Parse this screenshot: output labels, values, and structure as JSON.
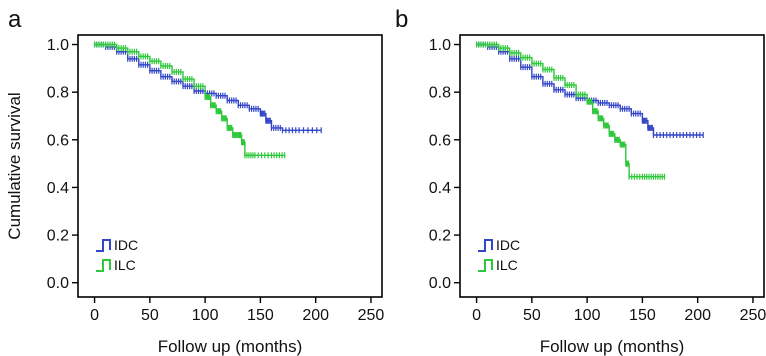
{
  "chart_data": [
    {
      "type": "line",
      "panel_label": "a",
      "xlabel": "Follow up (months)",
      "ylabel": "Cumulative survival",
      "xlim": [
        -15,
        260
      ],
      "ylim": [
        -0.06,
        1.04
      ],
      "xticks": [
        "0",
        "50",
        "100",
        "150",
        "200",
        "250"
      ],
      "yticks": [
        "0.0",
        "0.2",
        "0.4",
        "0.6",
        "0.8",
        "1.0"
      ],
      "legend_position": "bottom-left",
      "series": [
        {
          "name": "IDC",
          "color": "#3446c8",
          "x": [
            0,
            10,
            20,
            30,
            40,
            50,
            60,
            70,
            80,
            90,
            100,
            110,
            120,
            130,
            140,
            150,
            155,
            160,
            170,
            185,
            205
          ],
          "y": [
            1.0,
            0.99,
            0.97,
            0.94,
            0.915,
            0.89,
            0.865,
            0.845,
            0.825,
            0.805,
            0.795,
            0.785,
            0.765,
            0.745,
            0.73,
            0.71,
            0.68,
            0.65,
            0.64,
            0.64,
            0.64
          ]
        },
        {
          "name": "ILC",
          "color": "#2fc83c",
          "x": [
            0,
            10,
            20,
            30,
            40,
            50,
            60,
            70,
            80,
            90,
            100,
            105,
            110,
            115,
            120,
            125,
            130,
            133,
            136,
            145,
            160,
            172
          ],
          "y": [
            1.0,
            1.0,
            0.985,
            0.97,
            0.95,
            0.93,
            0.91,
            0.885,
            0.855,
            0.825,
            0.78,
            0.745,
            0.72,
            0.69,
            0.65,
            0.62,
            0.62,
            0.59,
            0.535,
            0.535,
            0.535,
            0.535
          ]
        }
      ]
    },
    {
      "type": "line",
      "panel_label": "b",
      "xlabel": "Follow up (months)",
      "ylabel": "",
      "xlim": [
        -15,
        260
      ],
      "ylim": [
        -0.06,
        1.04
      ],
      "xticks": [
        "0",
        "50",
        "100",
        "150",
        "200",
        "250"
      ],
      "yticks": [
        "0.0",
        "0.2",
        "0.4",
        "0.6",
        "0.8",
        "1.0"
      ],
      "legend_position": "bottom-left",
      "series": [
        {
          "name": "IDC",
          "color": "#3446c8",
          "x": [
            0,
            10,
            20,
            30,
            40,
            50,
            60,
            70,
            80,
            90,
            100,
            110,
            120,
            130,
            140,
            150,
            155,
            160,
            175,
            190,
            205
          ],
          "y": [
            1.0,
            0.99,
            0.97,
            0.94,
            0.905,
            0.865,
            0.835,
            0.81,
            0.79,
            0.775,
            0.765,
            0.755,
            0.745,
            0.73,
            0.71,
            0.68,
            0.65,
            0.62,
            0.62,
            0.62,
            0.62
          ]
        },
        {
          "name": "ILC",
          "color": "#2fc83c",
          "x": [
            0,
            10,
            20,
            30,
            40,
            50,
            60,
            70,
            80,
            90,
            100,
            105,
            110,
            115,
            120,
            125,
            130,
            135,
            138,
            150,
            160,
            170
          ],
          "y": [
            1.0,
            1.0,
            0.985,
            0.965,
            0.945,
            0.92,
            0.895,
            0.86,
            0.83,
            0.79,
            0.76,
            0.72,
            0.69,
            0.66,
            0.625,
            0.6,
            0.58,
            0.5,
            0.445,
            0.445,
            0.445,
            0.445
          ]
        }
      ]
    }
  ]
}
